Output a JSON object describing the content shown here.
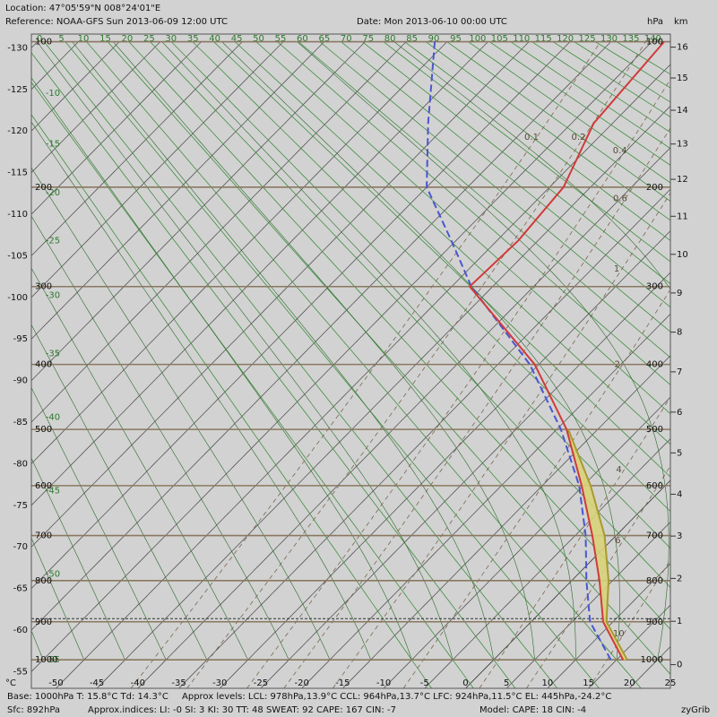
{
  "chart_data": {
    "type": "skewt",
    "header": {
      "location": "Location:  47°05'59\"N  008°24'01\"E",
      "reference": "Reference: NOAA-GFS Sun 2013-06-09 12:00 UTC",
      "date": "Date: Mon 2013-06-10 00:00 UTC",
      "pressure_unit": "hPa",
      "height_unit": "km"
    },
    "footer": {
      "base": "Base: 1000hPa  T: 15.8°C  Td: 14.3°C",
      "levels": "Approx levels:  LCL: 978hPa,13.9°C   CCL: 964hPa,13.7°C   LFC: 924hPa,11.5°C   EL: 445hPa,-24.2°C",
      "sfc": "Sfc: 892hPa",
      "indices": "Approx.indices:  LI: -0  SI: 3  KI: 30  TT: 48  SWEAT: 92  CAPE: 167  CIN: -7",
      "model": "Model: CAPE: 18 CIN: -4",
      "credit": "zyGrib"
    },
    "x_unit": "°C",
    "xlim": [
      -53,
      25
    ],
    "ylim": [
      1080,
      96
    ],
    "xticks": [
      -50,
      -45,
      -40,
      -35,
      -30,
      -25,
      -20,
      -15,
      -10,
      -5,
      0,
      5,
      10,
      15,
      20,
      25
    ],
    "left_ticks": [
      -130,
      -125,
      -120,
      -115,
      -110,
      -105,
      -100,
      -95,
      -90,
      -85,
      -80,
      -75,
      -70,
      -65,
      -60,
      -55
    ],
    "pressure_ticks": [
      100,
      200,
      300,
      400,
      500,
      600,
      700,
      800,
      900,
      1000
    ],
    "km_ticks": [
      0,
      1,
      2,
      3,
      4,
      5,
      6,
      7,
      8,
      9,
      10,
      11,
      12,
      13,
      14,
      15,
      16
    ],
    "dry_adiabats": [
      -10,
      -5,
      0,
      5,
      10,
      15,
      20,
      25,
      30,
      35,
      40,
      45,
      50,
      55,
      60,
      65,
      70,
      75,
      80,
      85,
      90,
      95,
      100,
      105,
      110,
      115,
      120,
      125,
      130,
      135,
      140
    ],
    "moist_adiabats": [
      -55,
      -50,
      -45,
      -40,
      -35,
      -30,
      -25,
      -20,
      -15,
      -10,
      -5,
      0,
      5,
      10,
      15,
      20,
      25
    ],
    "mixing_ratios": [
      0.1,
      0.2,
      0.4,
      0.6,
      1,
      2,
      4,
      6,
      10
    ],
    "surface_pressure": 892,
    "pressures": [
      1000,
      900,
      800,
      700,
      600,
      500,
      400,
      300,
      250,
      200,
      150,
      100
    ],
    "series": [
      {
        "color": "#d03a3a",
        "values": [
          15.8,
          8.8,
          3.4,
          -2.9,
          -10.2,
          -18.8,
          -30.5,
          -47.8,
          -47.4,
          -48.3,
          -52.3,
          -53.5
        ]
      },
      {
        "color": "#4a56d0",
        "dashed": true,
        "values": [
          14.3,
          7.2,
          1.8,
          -3.7,
          -10.5,
          -19.5,
          -31.1,
          -47.6,
          -55.6,
          -65,
          -72.5,
          -81.5
        ]
      },
      {
        "color": "#a89a30",
        "fill": "#d8d27a",
        "values": [
          16.3,
          9.2,
          4.5,
          -1.4,
          -9.1,
          -18.6,
          null,
          null,
          null,
          null,
          null,
          null
        ]
      }
    ]
  }
}
